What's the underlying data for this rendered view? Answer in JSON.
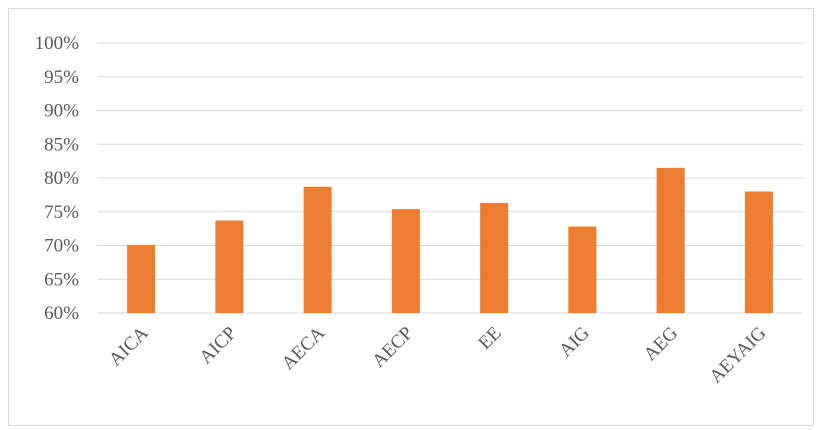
{
  "chart_data": {
    "type": "bar",
    "categories": [
      "AICA",
      "AICP",
      "AECA",
      "AECP",
      "EE",
      "AIG",
      "AEG",
      "AEYAIG"
    ],
    "values": [
      0.701,
      0.737,
      0.787,
      0.754,
      0.763,
      0.728,
      0.815,
      0.78
    ],
    "ylim": [
      0.6,
      1.0
    ],
    "yticks": [
      "60%",
      "65%",
      "70%",
      "75%",
      "80%",
      "85%",
      "90%",
      "95%",
      "100%"
    ],
    "ytick_values": [
      0.6,
      0.65,
      0.7,
      0.75,
      0.8,
      0.85,
      0.9,
      0.95,
      1.0
    ],
    "title": "",
    "xlabel": "",
    "ylabel": "",
    "grid": true,
    "legend": "none",
    "colors": {
      "bar": "#ED7D31",
      "grid": "#D9D9D9",
      "text": "#595959",
      "frame": "#D9D9D9"
    }
  }
}
